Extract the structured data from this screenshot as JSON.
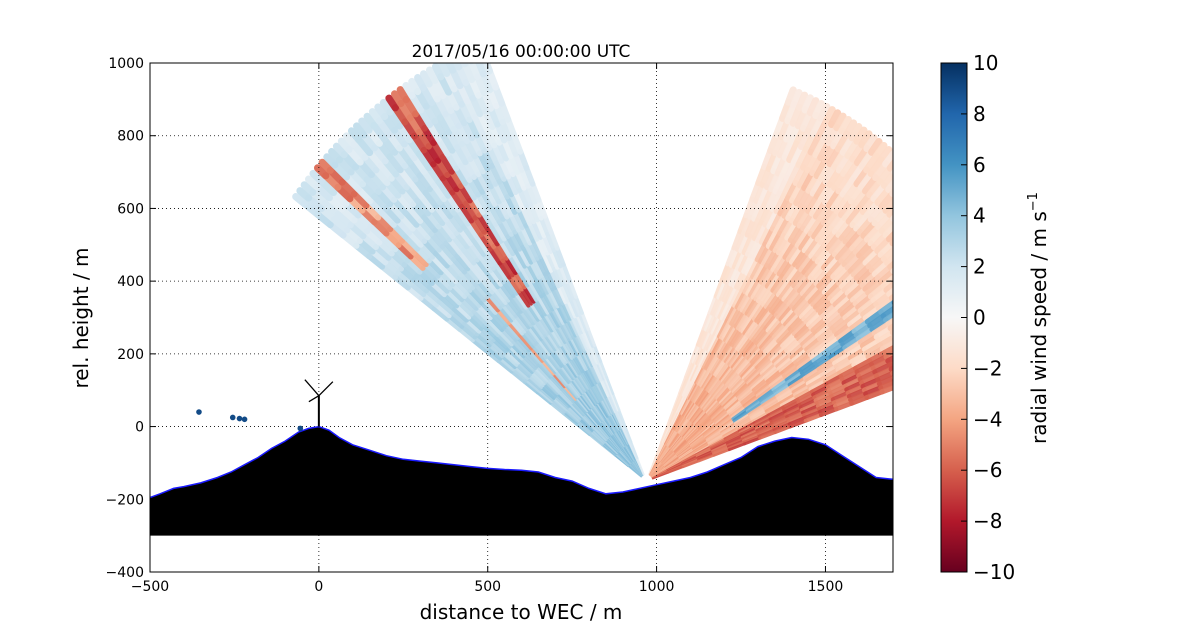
{
  "chart_data": {
    "type": "heatmap",
    "title": "2017/05/16 00:00:00 UTC",
    "xlabel": "distance to WEC / m",
    "ylabel": "rel. height / m",
    "xlim": [
      -500,
      1700
    ],
    "ylim": [
      -400,
      1000
    ],
    "xticks": [
      -500,
      0,
      500,
      1000,
      1500
    ],
    "yticks": [
      -400,
      -200,
      0,
      200,
      400,
      600,
      800,
      1000
    ],
    "grid": true,
    "colorbar": {
      "label": "radial wind speed / m s",
      "label_sup": "−1",
      "range": [
        -10,
        10
      ],
      "ticks": [
        -10,
        -8,
        -6,
        -4,
        -2,
        0,
        2,
        4,
        6,
        8,
        10
      ],
      "colormap": "RdBu (−10 red, +10 blue)"
    },
    "lidar": {
      "x": 970,
      "y": -150
    },
    "turbine": {
      "x": 0,
      "hub_height": 85
    },
    "sector_left": {
      "angle_from_deg": 143,
      "angle_to_deg": 112,
      "range_max_m": 1300,
      "mean_speed_ms": 2.5
    },
    "sector_right": {
      "angle_from_deg": 68,
      "angle_to_deg": 19,
      "range_max_m": 1160,
      "mean_speed_ms": -2.5
    },
    "terrain": {
      "x": [
        -500,
        -470,
        -430,
        -400,
        -350,
        -300,
        -260,
        -220,
        -180,
        -140,
        -100,
        -60,
        -30,
        0,
        30,
        60,
        100,
        150,
        200,
        250,
        300,
        350,
        400,
        450,
        500,
        550,
        600,
        650,
        700,
        750,
        800,
        850,
        900,
        950,
        1000,
        1050,
        1100,
        1150,
        1200,
        1250,
        1300,
        1350,
        1400,
        1450,
        1500,
        1550,
        1600,
        1650,
        1700
      ],
      "y": [
        -195,
        -185,
        -170,
        -165,
        -155,
        -140,
        -125,
        -105,
        -85,
        -60,
        -40,
        -15,
        -5,
        0,
        -10,
        -30,
        -50,
        -65,
        -80,
        -90,
        -95,
        -100,
        -105,
        -110,
        -115,
        -118,
        -120,
        -125,
        -140,
        -150,
        -170,
        -185,
        -180,
        -170,
        -160,
        -150,
        -140,
        -125,
        -105,
        -85,
        -55,
        -40,
        -30,
        -35,
        -50,
        -80,
        -110,
        -140,
        -145
      ],
      "base": -300
    },
    "annotations": [
      {
        "x": -355,
        "y": 40
      },
      {
        "x": -255,
        "y": 25
      },
      {
        "x": -235,
        "y": 22
      },
      {
        "x": -220,
        "y": 20
      },
      {
        "x": -55,
        "y": -5
      }
    ]
  }
}
